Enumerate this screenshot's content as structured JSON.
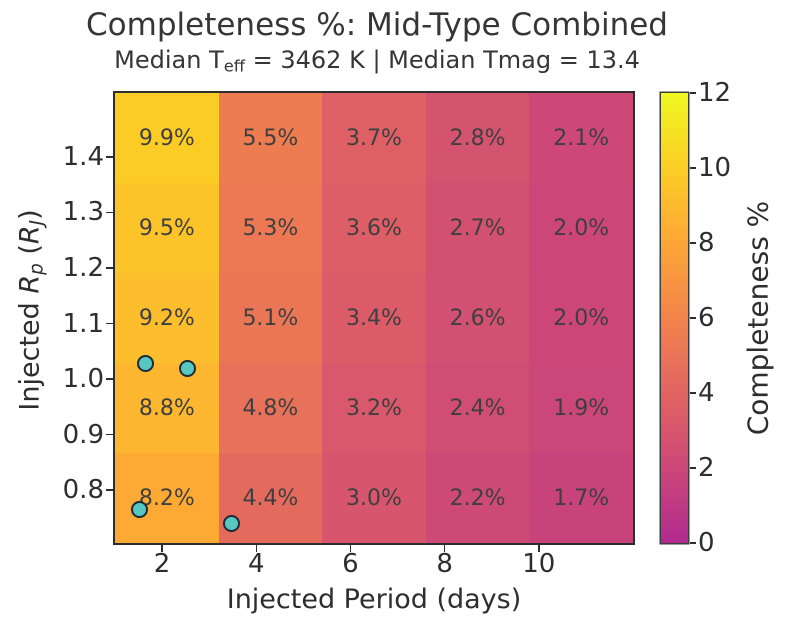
{
  "figure": {
    "title": "Completeness %: Mid-Type Combined",
    "subtitle_pre": "Median T",
    "subtitle_sub": "eff",
    "subtitle_post": " = 3462 K | Median Tmag = 13.4",
    "xlabel": "Injected Period (days)",
    "ylabel": {
      "pre": "Injected ",
      "r1": "R",
      "sub1": "p",
      "mid": " (",
      "r2": "R",
      "sub2": "J",
      "end": ")"
    }
  },
  "colorbar": {
    "label": "Completeness %",
    "ticks": [
      0,
      2,
      4,
      6,
      8,
      10,
      12
    ],
    "vmin": 0,
    "vmax": 12,
    "color_at_min": "#b12a90",
    "color_at_max": "#f0f921"
  },
  "chart_data": {
    "type": "heatmap",
    "title": "Completeness %: Mid-Type Combined",
    "subtitle": "Median Teff = 3462 K | Median Tmag = 13.4",
    "xlabel": "Injected Period (days)",
    "ylabel": "Injected Rp (RJ)",
    "xlim": [
      1.0,
      12.0
    ],
    "ylim": [
      0.705,
      1.515
    ],
    "x_ticks": [
      2,
      4,
      6,
      8,
      10
    ],
    "y_ticks": [
      1.4,
      1.3,
      1.2,
      1.1,
      1.0,
      0.9,
      0.8
    ],
    "n_cols": 5,
    "n_rows": 5,
    "column_period_centers_days": [
      2.1,
      4.3,
      6.5,
      8.7,
      10.9
    ],
    "row_rp_centers_top_to_bottom_rj": [
      1.434,
      1.272,
      1.11,
      0.948,
      0.786
    ],
    "values_pct_rows_top_to_bottom": [
      [
        9.9,
        5.5,
        3.7,
        2.8,
        2.1
      ],
      [
        9.5,
        5.3,
        3.6,
        2.7,
        2.0
      ],
      [
        9.2,
        5.1,
        3.4,
        2.6,
        2.0
      ],
      [
        8.8,
        4.8,
        3.2,
        2.4,
        1.9
      ],
      [
        8.2,
        4.4,
        3.0,
        2.2,
        1.7
      ]
    ],
    "value_label_suffix": "%",
    "colormap": "plasma truncated to [0.4, 1.0] of full map, vmin 0, vmax 12",
    "scatter_points": [
      {
        "period_days": 1.64,
        "rp_rj": 1.029
      },
      {
        "period_days": 2.55,
        "rp_rj": 1.02
      },
      {
        "period_days": 1.53,
        "rp_rj": 0.766
      },
      {
        "period_days": 3.48,
        "rp_rj": 0.741
      }
    ],
    "scatter_fill": "#57c7c1",
    "scatter_edge": "#1e2a36",
    "legend": "none",
    "grid": "off"
  }
}
